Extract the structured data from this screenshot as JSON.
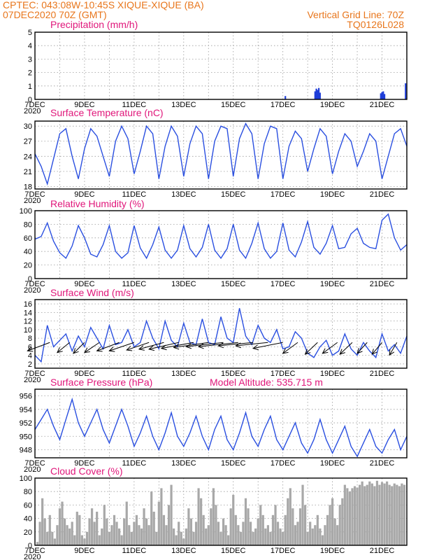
{
  "header": {
    "line1": "CPTEC:   043:08W-10:45S   XIQUE-XIQUE (BA)",
    "line2": "07DEC2020 70Z (GMT)",
    "right1": "Vertical Grid Line: 70Z",
    "right2": "TQ0126L028"
  },
  "x_axis": {
    "dates": [
      "7DEC",
      "9DEC",
      "11DEC",
      "13DEC",
      "15DEC",
      "17DEC",
      "19DEC",
      "21DEC"
    ],
    "date_days": [
      0,
      2,
      4,
      6,
      8,
      10,
      12,
      14
    ],
    "year_fragment": "2020"
  },
  "panels": {
    "precip": {
      "title": "Precipitation (mm/h)"
    },
    "temp": {
      "title": "Surface Temperature (nC)"
    },
    "rh": {
      "title": "Relative Humidity (%)"
    },
    "wind": {
      "title": "Surface Wind (m/s)"
    },
    "pres": {
      "title": "Surface Pressure (hPa)",
      "extra": "Model Altitude: 535.715 m"
    },
    "cloud": {
      "title": "Cloud Cover (%)"
    }
  },
  "chart_data": [
    {
      "type": "bar",
      "id": "precip",
      "title": "Precipitation (mm/h)",
      "ylim": [
        0,
        5
      ],
      "yticks": [
        0,
        1,
        2,
        3,
        4,
        5
      ],
      "x": [
        10.1,
        11.3,
        11.35,
        11.4,
        11.45,
        11.5,
        13.95,
        14.0,
        14.05,
        14.1,
        14.95
      ],
      "values": [
        0.25,
        0.6,
        0.8,
        0.7,
        0.85,
        0.5,
        0.45,
        0.55,
        0.6,
        0.4,
        1.2
      ]
    },
    {
      "type": "line",
      "id": "temp",
      "title": "Surface Temperature (nC)",
      "ylim": [
        17.5,
        31
      ],
      "yticks": [
        18,
        21,
        24,
        27,
        30
      ],
      "x": [
        0,
        0.25,
        0.5,
        0.75,
        1.0,
        1.25,
        1.5,
        1.75,
        2.0,
        2.25,
        2.5,
        2.75,
        3.0,
        3.25,
        3.5,
        3.75,
        4.0,
        4.25,
        4.5,
        4.75,
        5.0,
        5.25,
        5.5,
        5.75,
        6.0,
        6.25,
        6.5,
        6.75,
        7.0,
        7.25,
        7.5,
        7.75,
        8.0,
        8.25,
        8.5,
        8.75,
        9.0,
        9.25,
        9.5,
        9.75,
        10.0,
        10.25,
        10.5,
        10.75,
        11.0,
        11.25,
        11.5,
        11.75,
        12.0,
        12.25,
        12.5,
        12.75,
        13.0,
        13.25,
        13.5,
        13.75,
        14.0,
        14.25,
        14.5,
        14.75,
        15.0
      ],
      "values": [
        24.5,
        22.0,
        18.5,
        23.5,
        28.5,
        29.5,
        24.0,
        19.5,
        25.5,
        29.5,
        28.0,
        24.0,
        20.0,
        27.0,
        30.0,
        27.5,
        20.5,
        25.0,
        30.0,
        28.5,
        19.5,
        26.0,
        30.0,
        28.0,
        20.0,
        26.5,
        30.0,
        28.5,
        19.5,
        27.0,
        30.0,
        29.5,
        20.0,
        27.5,
        30.5,
        28.5,
        19.5,
        26.5,
        30.0,
        29.5,
        19.5,
        26.0,
        29.0,
        27.5,
        21.0,
        25.5,
        29.5,
        28.0,
        20.5,
        25.0,
        28.5,
        27.0,
        22.0,
        25.0,
        28.5,
        27.0,
        19.5,
        24.0,
        28.5,
        29.5,
        26.0
      ]
    },
    {
      "type": "line",
      "id": "rh",
      "title": "Relative Humidity (%)",
      "ylim": [
        0,
        100
      ],
      "yticks": [
        0,
        20,
        40,
        60,
        80,
        100
      ],
      "x": [
        0,
        0.25,
        0.5,
        0.75,
        1.0,
        1.25,
        1.5,
        1.75,
        2.0,
        2.25,
        2.5,
        2.75,
        3.0,
        3.25,
        3.5,
        3.75,
        4.0,
        4.25,
        4.5,
        4.75,
        5.0,
        5.25,
        5.5,
        5.75,
        6.0,
        6.25,
        6.5,
        6.75,
        7.0,
        7.25,
        7.5,
        7.75,
        8.0,
        8.25,
        8.5,
        8.75,
        9.0,
        9.25,
        9.5,
        9.75,
        10.0,
        10.25,
        10.5,
        10.75,
        11.0,
        11.25,
        11.5,
        11.75,
        12.0,
        12.25,
        12.5,
        12.75,
        13.0,
        13.25,
        13.5,
        13.75,
        14.0,
        14.25,
        14.5,
        14.75,
        15.0
      ],
      "values": [
        58,
        62,
        82,
        55,
        38,
        30,
        48,
        78,
        60,
        36,
        32,
        50,
        78,
        40,
        30,
        38,
        78,
        45,
        30,
        50,
        76,
        42,
        30,
        42,
        78,
        44,
        32,
        46,
        80,
        42,
        30,
        44,
        80,
        42,
        30,
        52,
        82,
        44,
        30,
        40,
        82,
        42,
        32,
        54,
        84,
        46,
        36,
        52,
        78,
        44,
        46,
        66,
        74,
        52,
        46,
        44,
        86,
        95,
        60,
        42,
        50
      ]
    },
    {
      "type": "line",
      "id": "wind",
      "title": "Surface Wind (m/s)",
      "ylim": [
        1,
        17
      ],
      "yticks": [
        2,
        4,
        6,
        8,
        10,
        12,
        14,
        16
      ],
      "x": [
        0,
        0.25,
        0.5,
        0.75,
        1.0,
        1.25,
        1.5,
        1.75,
        2.0,
        2.25,
        2.5,
        2.75,
        3.0,
        3.25,
        3.5,
        3.75,
        4.0,
        4.25,
        4.5,
        4.75,
        5.0,
        5.25,
        5.5,
        5.75,
        6.0,
        6.25,
        6.5,
        6.75,
        7.0,
        7.25,
        7.5,
        7.75,
        8.0,
        8.25,
        8.5,
        8.75,
        9.0,
        9.25,
        9.5,
        9.75,
        10.0,
        10.25,
        10.5,
        10.75,
        11.0,
        11.25,
        11.5,
        11.75,
        12.0,
        12.25,
        12.5,
        12.75,
        13.0,
        13.25,
        13.5,
        13.75,
        14.0,
        14.25,
        14.5,
        14.75,
        15.0
      ],
      "values": [
        4.0,
        2.5,
        11.0,
        6.0,
        7.5,
        9.0,
        5.0,
        8.5,
        6.0,
        10.5,
        8.0,
        5.5,
        11.0,
        6.5,
        7.0,
        10.0,
        6.0,
        7.0,
        12.0,
        8.0,
        5.5,
        12.0,
        7.5,
        6.0,
        11.5,
        7.0,
        6.5,
        12.5,
        7.0,
        6.5,
        13.0,
        8.0,
        7.0,
        15.0,
        8.5,
        6.5,
        11.0,
        8.0,
        7.0,
        10.0,
        5.5,
        6.0,
        9.5,
        8.0,
        4.5,
        3.5,
        6.0,
        7.5,
        4.0,
        5.0,
        9.0,
        5.5,
        4.0,
        7.0,
        5.0,
        3.5,
        9.0,
        5.0,
        6.5,
        4.5,
        8.5
      ]
    },
    {
      "type": "line",
      "id": "pres",
      "title": "Surface Pressure (hPa)",
      "ylim": [
        946.8,
        957
      ],
      "yticks": [
        948,
        950,
        952,
        954,
        956
      ],
      "x": [
        0,
        0.25,
        0.5,
        0.75,
        1.0,
        1.25,
        1.5,
        1.75,
        2.0,
        2.25,
        2.5,
        2.75,
        3.0,
        3.25,
        3.5,
        3.75,
        4.0,
        4.25,
        4.5,
        4.75,
        5.0,
        5.25,
        5.5,
        5.75,
        6.0,
        6.25,
        6.5,
        6.75,
        7.0,
        7.25,
        7.5,
        7.75,
        8.0,
        8.25,
        8.5,
        8.75,
        9.0,
        9.25,
        9.5,
        9.75,
        10.0,
        10.25,
        10.5,
        10.75,
        11.0,
        11.25,
        11.5,
        11.75,
        12.0,
        12.25,
        12.5,
        12.75,
        13.0,
        13.25,
        13.5,
        13.75,
        14.0,
        14.25,
        14.5,
        14.75,
        15.0
      ],
      "values": [
        951.0,
        952.5,
        954.0,
        951.5,
        949.5,
        952.5,
        955.5,
        952.0,
        950.0,
        952.0,
        954.0,
        951.0,
        949.0,
        951.5,
        954.0,
        951.5,
        948.5,
        950.5,
        953.0,
        950.0,
        948.0,
        950.5,
        953.5,
        950.0,
        948.5,
        950.5,
        953.0,
        950.0,
        948.0,
        951.0,
        953.0,
        949.5,
        948.0,
        950.5,
        953.5,
        950.0,
        948.5,
        951.0,
        953.0,
        949.5,
        948.0,
        950.0,
        952.0,
        949.0,
        947.5,
        949.5,
        952.5,
        949.5,
        947.5,
        949.5,
        951.5,
        948.5,
        947.0,
        949.0,
        951.0,
        948.5,
        947.5,
        949.5,
        951.0,
        948.0,
        950.0
      ]
    },
    {
      "type": "bar",
      "id": "cloud",
      "title": "Cloud Cover (%)",
      "ylim": [
        0,
        100
      ],
      "yticks": [
        0,
        20,
        40,
        60,
        80,
        100
      ],
      "x": [
        0.1,
        0.2,
        0.3,
        0.4,
        0.5,
        0.6,
        0.7,
        0.8,
        0.9,
        1.0,
        1.1,
        1.2,
        1.3,
        1.4,
        1.5,
        1.6,
        1.7,
        1.8,
        1.9,
        2.0,
        2.1,
        2.2,
        2.3,
        2.4,
        2.5,
        2.6,
        2.7,
        2.8,
        2.9,
        3.0,
        3.1,
        3.2,
        3.3,
        3.4,
        3.5,
        3.6,
        3.7,
        3.8,
        3.9,
        4.0,
        4.1,
        4.2,
        4.3,
        4.4,
        4.5,
        4.6,
        4.7,
        4.8,
        4.9,
        5.0,
        5.1,
        5.2,
        5.3,
        5.4,
        5.5,
        5.6,
        5.7,
        5.8,
        5.9,
        6.0,
        6.1,
        6.2,
        6.3,
        6.4,
        6.5,
        6.6,
        6.7,
        6.8,
        6.9,
        7.0,
        7.1,
        7.2,
        7.3,
        7.4,
        7.5,
        7.6,
        7.7,
        7.8,
        7.9,
        8.0,
        8.1,
        8.2,
        8.3,
        8.4,
        8.5,
        8.6,
        8.7,
        8.8,
        8.9,
        9.0,
        9.1,
        9.2,
        9.3,
        9.4,
        9.5,
        9.6,
        9.7,
        9.8,
        9.9,
        10.0,
        10.1,
        10.2,
        10.3,
        10.4,
        10.5,
        10.6,
        10.7,
        10.8,
        10.9,
        11.0,
        11.1,
        11.2,
        11.3,
        11.4,
        11.5,
        11.6,
        11.7,
        11.8,
        11.9,
        12.0,
        12.1,
        12.2,
        12.3,
        12.4,
        12.5,
        12.6,
        12.7,
        12.8,
        12.9,
        13.0,
        13.1,
        13.2,
        13.3,
        13.4,
        13.5,
        13.6,
        13.7,
        13.8,
        13.9,
        14.0,
        14.1,
        14.2,
        14.3,
        14.4,
        14.5,
        14.6,
        14.7,
        14.8,
        14.9
      ],
      "values": [
        5,
        35,
        70,
        40,
        20,
        45,
        20,
        10,
        30,
        55,
        65,
        40,
        30,
        25,
        35,
        15,
        50,
        45,
        15,
        10,
        20,
        40,
        55,
        35,
        50,
        15,
        25,
        60,
        40,
        20,
        30,
        45,
        35,
        25,
        15,
        40,
        65,
        30,
        20,
        35,
        45,
        30,
        25,
        55,
        40,
        30,
        80,
        50,
        20,
        65,
        85,
        45,
        30,
        60,
        90,
        25,
        15,
        35,
        20,
        10,
        25,
        55,
        40,
        20,
        35,
        85,
        70,
        45,
        25,
        30,
        55,
        85,
        60,
        35,
        20,
        40,
        30,
        15,
        55,
        75,
        45,
        30,
        20,
        35,
        70,
        55,
        35,
        20,
        25,
        40,
        60,
        45,
        25,
        30,
        20,
        45,
        60,
        35,
        25,
        20,
        45,
        70,
        85,
        55,
        30,
        35,
        55,
        90,
        60,
        20,
        35,
        25,
        30,
        45,
        25,
        15,
        30,
        45,
        60,
        70,
        40,
        30,
        60,
        70,
        90,
        85,
        80,
        85,
        88,
        86,
        90,
        95,
        88,
        90,
        95,
        92,
        88,
        96,
        90,
        94,
        92,
        95,
        90,
        88,
        92,
        90,
        88,
        92,
        90
      ]
    }
  ],
  "wind_vectors": {
    "x": [
      0.6,
      1.4,
      2.0,
      2.6,
      3.4,
      4.0,
      4.6,
      5.2,
      5.8,
      6.4,
      7.0,
      7.6,
      8.2,
      8.8,
      9.4,
      10.0,
      10.6,
      11.4,
      12.2,
      12.8,
      13.4,
      14.0,
      14.6
    ],
    "dx": [
      0.9,
      0.5,
      0.45,
      0.6,
      0.9,
      1.0,
      0.9,
      1.0,
      1.2,
      1.3,
      1.4,
      1.5,
      1.6,
      1.4,
      1.3,
      1.2,
      0.6,
      0.5,
      0.6,
      0.5,
      0.4,
      0.4,
      0.3
    ],
    "dy": [
      2.0,
      2.4,
      2.6,
      2.4,
      2.0,
      2.0,
      1.8,
      1.6,
      1.6,
      1.4,
      1.2,
      1.0,
      1.0,
      0.8,
      0.8,
      1.4,
      2.6,
      2.8,
      2.6,
      2.8,
      2.6,
      2.8,
      3.0
    ]
  }
}
